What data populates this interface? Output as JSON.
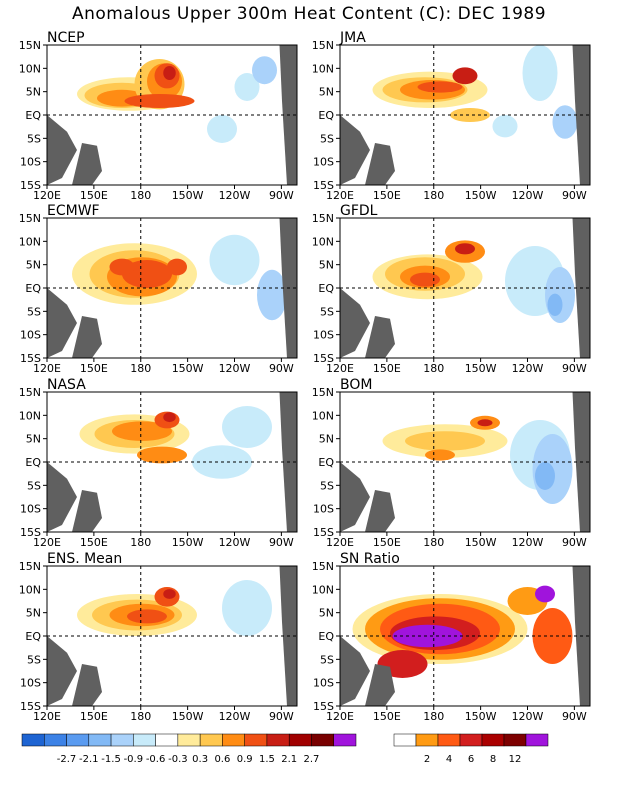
{
  "title": "Anomalous Upper 300m Heat Content (C): DEC 1989",
  "lat_ticks": [
    "15N",
    "10N",
    "5N",
    "EQ",
    "5S",
    "10S",
    "15S"
  ],
  "lon_ticks": [
    "120E",
    "150E",
    "180",
    "150W",
    "120W",
    "90W"
  ],
  "land_color": "#606060",
  "chart_data": [
    {
      "type": "heatmap",
      "title": "NCEP",
      "units": "C",
      "lat_range": [
        -15,
        15
      ],
      "lon_range": [
        120,
        280
      ]
    },
    {
      "type": "heatmap",
      "title": "JMA",
      "units": "C",
      "lat_range": [
        -15,
        15
      ],
      "lon_range": [
        120,
        280
      ]
    },
    {
      "type": "heatmap",
      "title": "ECMWF",
      "units": "C",
      "lat_range": [
        -15,
        15
      ],
      "lon_range": [
        120,
        280
      ]
    },
    {
      "type": "heatmap",
      "title": "GFDL",
      "units": "C",
      "lat_range": [
        -15,
        15
      ],
      "lon_range": [
        120,
        280
      ]
    },
    {
      "type": "heatmap",
      "title": "NASA",
      "units": "C",
      "lat_range": [
        -15,
        15
      ],
      "lon_range": [
        120,
        280
      ]
    },
    {
      "type": "heatmap",
      "title": "BOM",
      "units": "C",
      "lat_range": [
        -15,
        15
      ],
      "lon_range": [
        120,
        280
      ]
    },
    {
      "type": "heatmap",
      "title": "ENS. Mean",
      "units": "C",
      "lat_range": [
        -15,
        15
      ],
      "lon_range": [
        120,
        280
      ]
    },
    {
      "type": "heatmap",
      "title": "SN Ratio",
      "units": "ratio",
      "lat_range": [
        -15,
        15
      ],
      "lon_range": [
        120,
        280
      ]
    }
  ],
  "anomaly_colorbar": {
    "labels": [
      "-2.7",
      "-2.1",
      "-1.5",
      "-0.9",
      "-0.6",
      "-0.3",
      "0.3",
      "0.6",
      "0.9",
      "1.5",
      "2.1",
      "2.7"
    ],
    "colors": [
      "#1e64d2",
      "#3c82e6",
      "#5a9bf0",
      "#82b9f5",
      "#aad2fa",
      "#c8ebfa",
      "#ffffff",
      "#ffeb9b",
      "#ffc850",
      "#ff8c14",
      "#f05014",
      "#c81e14",
      "#a00000",
      "#780000",
      "#a014dc"
    ]
  },
  "snr_colorbar": {
    "labels": [
      "2",
      "4",
      "6",
      "8",
      "12"
    ],
    "colors": [
      "#ffffff",
      "#ff9b14",
      "#ff5a14",
      "#d21e1e",
      "#aa0000",
      "#7d0000",
      "#a014dc"
    ]
  }
}
